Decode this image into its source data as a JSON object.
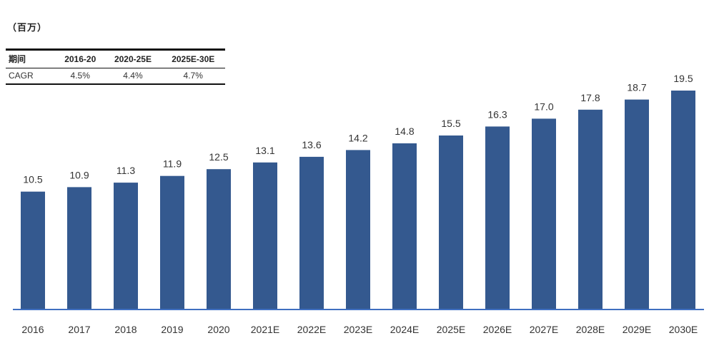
{
  "unit_label": "（百万）",
  "cagr_table": {
    "headers": [
      "期间",
      "2016-20",
      "2020-25E",
      "2025E-30E"
    ],
    "row": [
      "CAGR",
      "4.5%",
      "4.4%",
      "4.7%"
    ]
  },
  "colors": {
    "bar": "#34598f",
    "axis": "#3f6fc0"
  },
  "chart_data": {
    "type": "bar",
    "categories": [
      "2016",
      "2017",
      "2018",
      "2019",
      "2020",
      "2021E",
      "2022E",
      "2023E",
      "2024E",
      "2025E",
      "2026E",
      "2027E",
      "2028E",
      "2029E",
      "2030E"
    ],
    "values": [
      10.5,
      10.9,
      11.3,
      11.9,
      12.5,
      13.1,
      13.6,
      14.2,
      14.8,
      15.5,
      16.3,
      17.0,
      17.8,
      18.7,
      19.5
    ],
    "value_labels": [
      "10.5",
      "10.9",
      "11.3",
      "11.9",
      "12.5",
      "13.1",
      "13.6",
      "14.2",
      "14.8",
      "15.5",
      "16.3",
      "17.0",
      "17.8",
      "18.7",
      "19.5"
    ],
    "title": "",
    "xlabel": "",
    "ylabel": "",
    "ylim": [
      0,
      19.5
    ],
    "grid": false,
    "legend": "none"
  }
}
